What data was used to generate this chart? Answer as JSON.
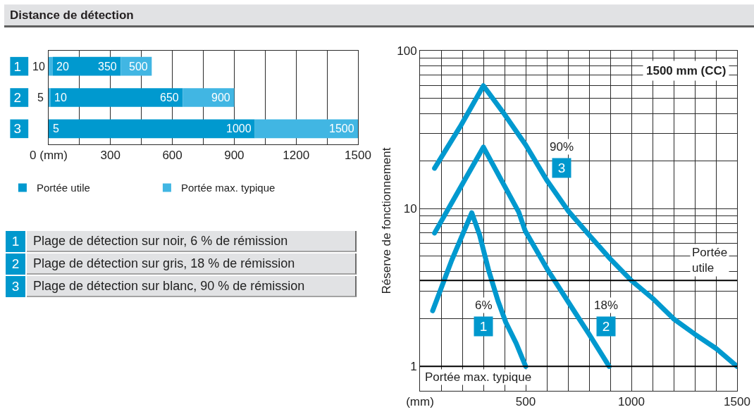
{
  "chart_data": [
    {
      "type": "bar",
      "title": "Distance de détection",
      "orientation": "horizontal",
      "stacked": true,
      "categories": [
        "1",
        "2",
        "3"
      ],
      "series": [
        {
          "color": "#41b6e3",
          "values": [
            20,
            10,
            null
          ]
        },
        {
          "name": "Portée utile",
          "color": "#0099cf",
          "values": [
            330,
            640,
            1000
          ]
        },
        {
          "name": "Portée max. typique",
          "color": "#41b6e3",
          "values": [
            150,
            250,
            500
          ]
        }
      ],
      "xlim": [
        0,
        1500
      ],
      "xticks": [
        {
          "value": 0,
          "label": "0 (mm)"
        },
        {
          "value": 150,
          "label": null
        },
        300,
        {
          "value": 450,
          "label": null
        },
        600,
        {
          "value": 750,
          "label": null
        },
        900,
        {
          "value": 1050,
          "label": null
        },
        1200,
        {
          "value": 1350,
          "label": null
        },
        1500
      ],
      "grid": "x",
      "legend": "bottom",
      "annotations": [
        {
          "text": "10",
          "x": 10,
          "y": "1"
        },
        {
          "text": "20",
          "x": 20,
          "y": "1"
        },
        {
          "text": "350",
          "x": 350,
          "y": "1"
        },
        {
          "text": "500",
          "x": 500,
          "y": "1"
        },
        {
          "text": "5",
          "x": 5,
          "y": "2"
        },
        {
          "text": "10",
          "x": 10,
          "y": "2"
        },
        {
          "text": "650",
          "x": 650,
          "y": "2"
        },
        {
          "text": "900",
          "x": 900,
          "y": "2"
        },
        {
          "text": "5",
          "x": 5,
          "y": "3"
        },
        {
          "text": "1000",
          "x": 1000,
          "y": "3"
        },
        {
          "text": "1500",
          "x": 1500,
          "y": "3"
        }
      ]
    },
    {
      "type": "other",
      "categories": [
        "1",
        "2",
        "3"
      ],
      "annotations": [
        "Plage de détection sur noir, 6 % de rémission",
        "Plage de détection sur gris, 18 % de rémission",
        "Plage de détection sur blanc, 90 % de rémission"
      ]
    },
    {
      "type": "line",
      "ylabel": "Réserve de fonctionnement",
      "log": "y",
      "xlim": [
        0,
        1500
      ],
      "xticks": [
        {
          "value": 0,
          "label": "(mm)"
        },
        {
          "value": 100,
          "label": null
        },
        {
          "value": 200,
          "label": null
        },
        {
          "value": 300,
          "label": null
        },
        {
          "value": 400,
          "label": null
        },
        500,
        {
          "value": 600,
          "label": null
        },
        {
          "value": 700,
          "label": null
        },
        {
          "value": 800,
          "label": null
        },
        {
          "value": 900,
          "label": null
        },
        1000,
        {
          "value": 1100,
          "label": null
        },
        {
          "value": 1200,
          "label": null
        },
        {
          "value": 1300,
          "label": null
        },
        {
          "value": 1400,
          "label": null
        },
        1500
      ],
      "ylim": [
        0.7,
        100
      ],
      "yticks": [
        1,
        {
          "value": 2,
          "label": null
        },
        {
          "value": 3,
          "label": null
        },
        {
          "value": 4,
          "label": null
        },
        {
          "value": 5,
          "label": null
        },
        {
          "value": 6,
          "label": null
        },
        {
          "value": 7,
          "label": null
        },
        {
          "value": 8,
          "label": null
        },
        {
          "value": 9,
          "label": null
        },
        10,
        {
          "value": 20,
          "label": null
        },
        {
          "value": 30,
          "label": null
        },
        {
          "value": 40,
          "label": null
        },
        {
          "value": 50,
          "label": null
        },
        {
          "value": 60,
          "label": null
        },
        {
          "value": 70,
          "label": null
        },
        {
          "value": 80,
          "label": null
        },
        {
          "value": 90,
          "label": null
        },
        100
      ],
      "grid": true,
      "series": [
        {
          "name": "6%",
          "color": "#0099cf",
          "x": [
            60,
            150,
            245,
            282,
            325,
            369,
            406,
            455,
            500
          ],
          "values": [
            2.25,
            4.7,
            9.4,
            6.8,
            4.05,
            2.6,
            1.9,
            1.4,
            1.0
          ]
        },
        {
          "name": "18%",
          "color": "#0099cf",
          "x": [
            69,
            190,
            300,
            390,
            467,
            498,
            606,
            713,
            800,
            895
          ],
          "values": [
            7.0,
            13.5,
            24.5,
            14.7,
            9.5,
            7.2,
            4.05,
            2.42,
            1.6,
            1.0
          ]
        },
        {
          "name": "90%",
          "color": "#0099cf",
          "x": [
            69,
            190,
            300,
            400,
            500,
            600,
            700,
            800,
            900,
            1000,
            1100,
            1200,
            1300,
            1400,
            1500
          ],
          "values": [
            18,
            33,
            60,
            39.5,
            25.3,
            15.1,
            9.7,
            6.8,
            4.8,
            3.5,
            2.7,
            2.0,
            1.6,
            1.3,
            1.0
          ]
        }
      ],
      "ref_lines": [
        {
          "axis": "y",
          "value": 3.5,
          "label": "Portée utile",
          "color": "#000000"
        },
        {
          "axis": "y",
          "value": 1,
          "label": "Portée max. typique",
          "color": "#000000"
        }
      ],
      "annotations": [
        "1500 mm (CC)",
        {
          "text": "1",
          "x": 300,
          "y": 1.8
        },
        {
          "text": "2",
          "x": 880,
          "y": 1.8
        },
        {
          "text": "3",
          "x": 670,
          "y": 18
        }
      ]
    }
  ]
}
